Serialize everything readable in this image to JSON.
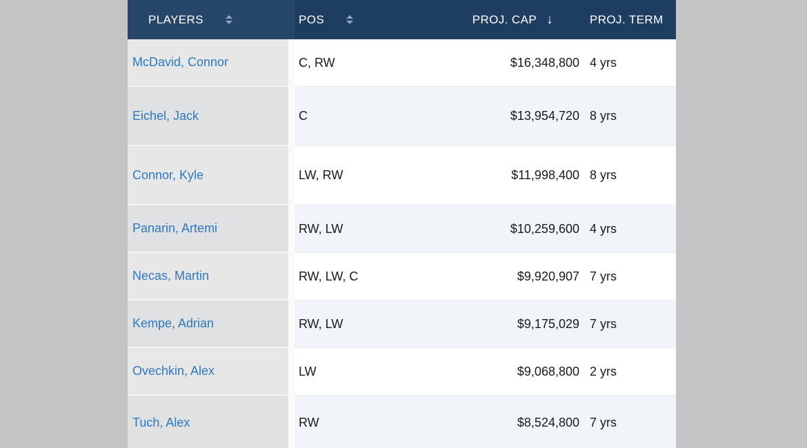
{
  "page": {
    "background": "#c4c4c4"
  },
  "table": {
    "columns": [
      {
        "key": "players",
        "label": "PLAYERS",
        "sortable": true,
        "sort_state": "none"
      },
      {
        "key": "pos",
        "label": "POS",
        "sortable": true,
        "sort_state": "none"
      },
      {
        "key": "proj_cap",
        "label": "PROJ. CAP",
        "sortable": true,
        "sort_state": "descending"
      },
      {
        "key": "proj_term",
        "label": "PROJ. TERM",
        "sortable": false,
        "sort_state": "none"
      }
    ],
    "rows": [
      {
        "player": "McDavid, Connor",
        "pos": "C, RW",
        "cap": "$16,348,800",
        "term": "4 yrs"
      },
      {
        "player": "Eichel, Jack",
        "pos": "C",
        "cap": "$13,954,720",
        "term": "8 yrs"
      },
      {
        "player": "Connor, Kyle",
        "pos": "LW, RW",
        "cap": "$11,998,400",
        "term": "8 yrs"
      },
      {
        "player": "Panarin, Artemi",
        "pos": "RW, LW",
        "cap": "$10,259,600",
        "term": "4 yrs"
      },
      {
        "player": "Necas, Martin",
        "pos": "RW, LW, C",
        "cap": "$9,920,907",
        "term": "7 yrs"
      },
      {
        "player": "Kempe, Adrian",
        "pos": "RW, LW",
        "cap": "$9,175,029",
        "term": "7 yrs"
      },
      {
        "player": "Ovechkin, Alex",
        "pos": "LW",
        "cap": "$9,068,800",
        "term": "2 yrs"
      },
      {
        "player": "Tuch, Alex",
        "pos": "RW",
        "cap": "$8,524,800",
        "term": "7 yrs"
      }
    ]
  },
  "icons": {
    "sort_toggle": "chevron-up-down-icon",
    "sorted_descending_glyph": "↓"
  },
  "colors": {
    "header_bg": "#1e3e61",
    "header_players_bg": "#27476a",
    "link_blue": "#2d78c0",
    "row_stripe": "#f1f5f9",
    "frozen_column_bg": "#e7e7e7",
    "page_bg": "#c4c4c4",
    "sort_icon": "#8aa9c4"
  }
}
